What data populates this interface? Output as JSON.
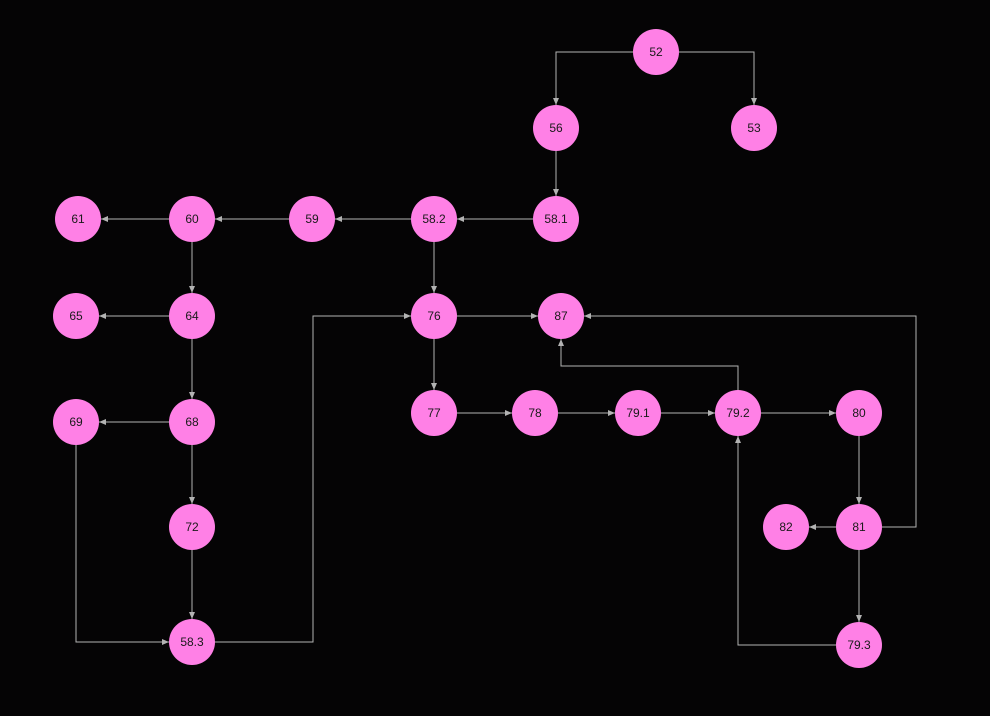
{
  "diagram": {
    "colors": {
      "background": "#050405",
      "node_fill": "#ff80e6",
      "node_text": "#1a1a1a",
      "edge": "#b3b3b3"
    },
    "nodes": [
      {
        "id": "52",
        "label": "52"
      },
      {
        "id": "56",
        "label": "56"
      },
      {
        "id": "53",
        "label": "53"
      },
      {
        "id": "58.1",
        "label": "58.1"
      },
      {
        "id": "58.2",
        "label": "58.2"
      },
      {
        "id": "59",
        "label": "59"
      },
      {
        "id": "60",
        "label": "60"
      },
      {
        "id": "61",
        "label": "61"
      },
      {
        "id": "64",
        "label": "64"
      },
      {
        "id": "65",
        "label": "65"
      },
      {
        "id": "68",
        "label": "68"
      },
      {
        "id": "69",
        "label": "69"
      },
      {
        "id": "72",
        "label": "72"
      },
      {
        "id": "58.3",
        "label": "58.3"
      },
      {
        "id": "76",
        "label": "76"
      },
      {
        "id": "87",
        "label": "87"
      },
      {
        "id": "77",
        "label": "77"
      },
      {
        "id": "78",
        "label": "78"
      },
      {
        "id": "79.1",
        "label": "79.1"
      },
      {
        "id": "79.2",
        "label": "79.2"
      },
      {
        "id": "80",
        "label": "80"
      },
      {
        "id": "81",
        "label": "81"
      },
      {
        "id": "82",
        "label": "82"
      },
      {
        "id": "79.3",
        "label": "79.3"
      }
    ],
    "edges": [
      {
        "from": "52",
        "to": "56"
      },
      {
        "from": "52",
        "to": "53"
      },
      {
        "from": "56",
        "to": "58.1"
      },
      {
        "from": "58.1",
        "to": "58.2"
      },
      {
        "from": "58.2",
        "to": "59"
      },
      {
        "from": "58.2",
        "to": "76"
      },
      {
        "from": "59",
        "to": "60"
      },
      {
        "from": "60",
        "to": "61"
      },
      {
        "from": "60",
        "to": "64"
      },
      {
        "from": "64",
        "to": "65"
      },
      {
        "from": "64",
        "to": "68"
      },
      {
        "from": "68",
        "to": "69"
      },
      {
        "from": "68",
        "to": "72"
      },
      {
        "from": "72",
        "to": "58.3"
      },
      {
        "from": "69",
        "to": "58.3"
      },
      {
        "from": "58.3",
        "to": "76"
      },
      {
        "from": "76",
        "to": "87"
      },
      {
        "from": "76",
        "to": "77"
      },
      {
        "from": "77",
        "to": "78"
      },
      {
        "from": "78",
        "to": "79.1"
      },
      {
        "from": "79.1",
        "to": "79.2"
      },
      {
        "from": "79.2",
        "to": "87"
      },
      {
        "from": "79.2",
        "to": "80"
      },
      {
        "from": "80",
        "to": "81"
      },
      {
        "from": "81",
        "to": "82"
      },
      {
        "from": "81",
        "to": "87"
      },
      {
        "from": "81",
        "to": "79.3"
      },
      {
        "from": "79.3",
        "to": "79.2"
      }
    ]
  }
}
